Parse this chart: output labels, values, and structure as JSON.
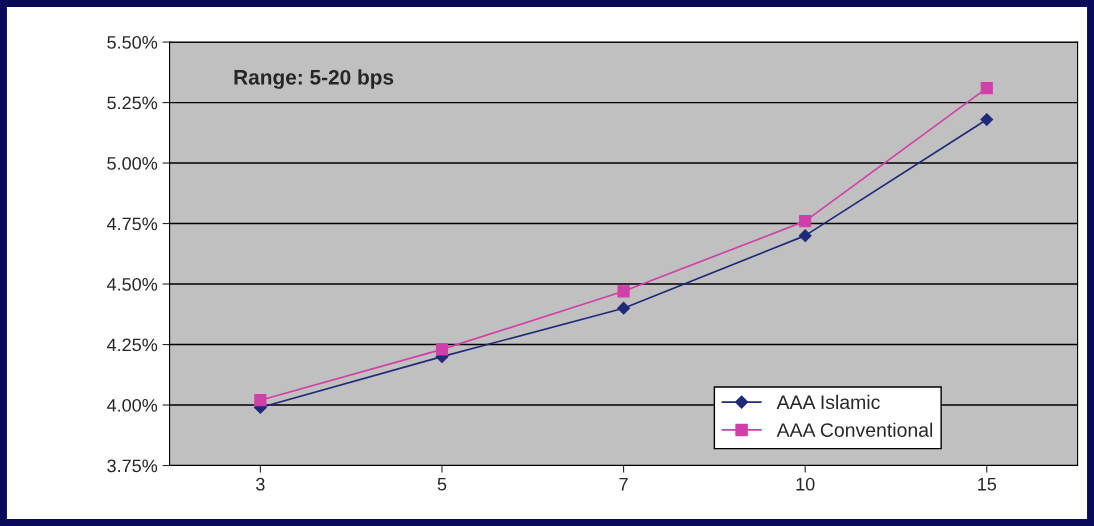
{
  "chart_data": {
    "type": "line",
    "categories": [
      "3",
      "5",
      "7",
      "10",
      "15"
    ],
    "series": [
      {
        "name": "AAA Islamic",
        "color": "#1f2a78",
        "marker": "diamond",
        "values": [
          3.99,
          4.2,
          4.4,
          4.7,
          5.18
        ]
      },
      {
        "name": "AAA Conventional",
        "color": "#d040a8",
        "marker": "square",
        "values": [
          4.02,
          4.23,
          4.47,
          4.76,
          5.31
        ]
      }
    ],
    "ylim": [
      3.75,
      5.5
    ],
    "yticks": [
      {
        "value": 3.75,
        "label": "3.75%"
      },
      {
        "value": 4.0,
        "label": "4.00%"
      },
      {
        "value": 4.25,
        "label": "4.25%"
      },
      {
        "value": 4.5,
        "label": "4.50%"
      },
      {
        "value": 4.75,
        "label": "4.75%"
      },
      {
        "value": 5.0,
        "label": "5.00%"
      },
      {
        "value": 5.25,
        "label": "5.25%"
      },
      {
        "value": 5.5,
        "label": "5.50%"
      }
    ],
    "grid": "y",
    "legend": "bottom right",
    "annotations": [
      "Range: 5-20 bps"
    ]
  }
}
